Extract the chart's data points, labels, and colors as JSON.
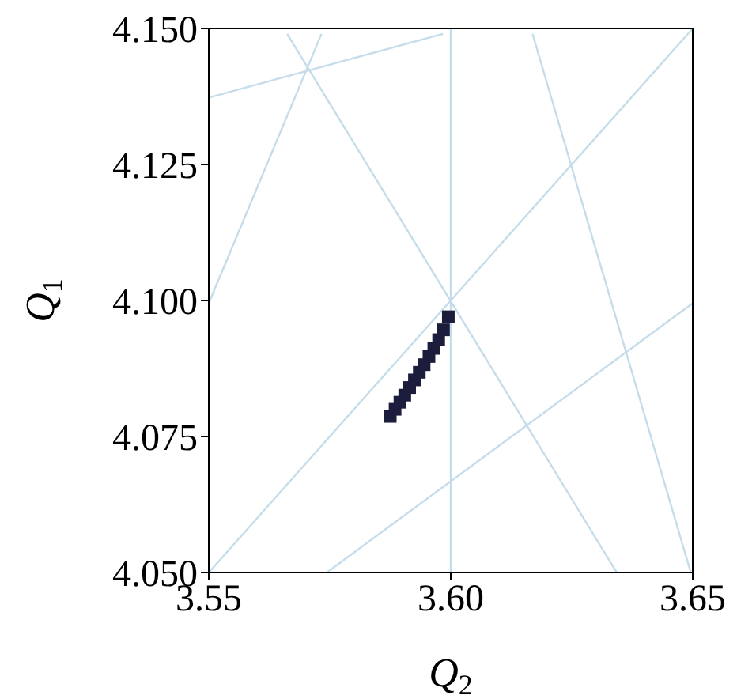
{
  "chart_data": {
    "type": "scatter",
    "xlabel": "Q$_{2}$",
    "ylabel": "Q$_{1}$",
    "xlim": [
      3.55,
      3.65
    ],
    "ylim": [
      4.05,
      4.15
    ],
    "xticks": [
      3.55,
      {
        "value": 3.6,
        "label": "3.60"
      },
      3.65
    ],
    "yticks": [
      {
        "value": 4.05,
        "label": "4.050"
      },
      4.075,
      {
        "value": 4.1,
        "label": "4.100"
      },
      4.125,
      {
        "value": 4.15,
        "label": "4.150"
      }
    ],
    "ref_lines": [
      {
        "axis": "x",
        "value": 3.6,
        "color": "#c5dcea"
      }
    ],
    "series": [
      {
        "marker": "square",
        "color": "#1c1c3c",
        "x": [
          3.5875,
          3.5885,
          3.5895,
          3.5905,
          3.5915,
          3.5925,
          3.5935,
          3.5945,
          3.5955,
          3.5965,
          3.5975,
          3.5985,
          3.5995
        ],
        "values": [
          4.0787,
          4.08,
          4.0813,
          4.0826,
          4.084,
          4.0854,
          4.0868,
          4.0882,
          4.0897,
          4.0912,
          4.0928,
          4.0946,
          4.097
        ]
      },
      {
        "type": "line",
        "color": "#c5dcea",
        "x": [
          3.55,
          3.65
        ],
        "values": [
          4.05,
          4.15
        ]
      },
      {
        "type": "line",
        "color": "#c5dcea",
        "x": [
          3.5662,
          3.6343
        ],
        "values": [
          4.149,
          4.05
        ]
      },
      {
        "type": "line",
        "color": "#c5dcea",
        "x": [
          3.55,
          3.5733
        ],
        "values": [
          4.0995,
          4.149
        ]
      },
      {
        "type": "line",
        "color": "#c5dcea",
        "x": [
          3.55,
          3.5984
        ],
        "values": [
          4.1373,
          4.149
        ]
      },
      {
        "type": "line",
        "color": "#c5dcea",
        "x": [
          3.6169,
          3.6496
        ],
        "values": [
          4.149,
          4.05
        ]
      },
      {
        "type": "line",
        "color": "#c5dcea",
        "x": [
          3.5744,
          3.65
        ],
        "values": [
          4.05,
          4.0995
        ]
      }
    ]
  }
}
